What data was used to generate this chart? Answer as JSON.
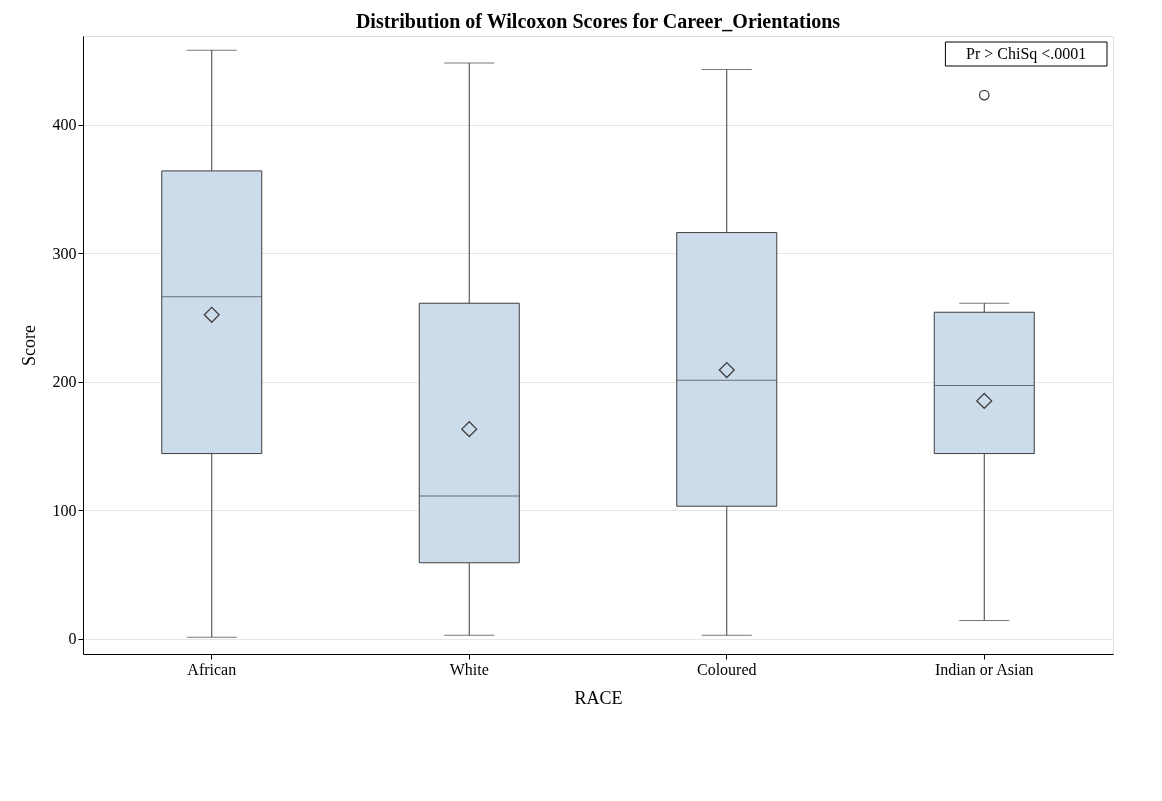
{
  "chart_data": {
    "type": "box",
    "title": "Distribution of Wilcoxon Scores for Career_Orientations",
    "xlabel": "RACE",
    "ylabel": "Score",
    "categories": [
      "African",
      "White",
      "Coloured",
      "Indian or Asian"
    ],
    "color": "#cddceb",
    "boxes": [
      {
        "low": 1,
        "q1": 144,
        "median": 266,
        "q3": 364,
        "high": 458,
        "mean": 252
      },
      {
        "low": 2.5,
        "q1": 59,
        "median": 111,
        "q3": 261,
        "high": 448,
        "mean": 163
      },
      {
        "low": 2.5,
        "q1": 103,
        "median": 201,
        "q3": 316,
        "high": 443,
        "mean": 209
      },
      {
        "low": 14,
        "q1": 144,
        "median": 197,
        "q3": 254,
        "high": 261,
        "mean": 185,
        "outliers": [
          423
        ]
      }
    ],
    "ylim": [
      -12,
      469
    ],
    "yticks": [
      0,
      100,
      200,
      300,
      400
    ],
    "grid": "y",
    "marker": "diamond",
    "annotations": [
      "Pr > ChiSq  <.0001"
    ]
  }
}
